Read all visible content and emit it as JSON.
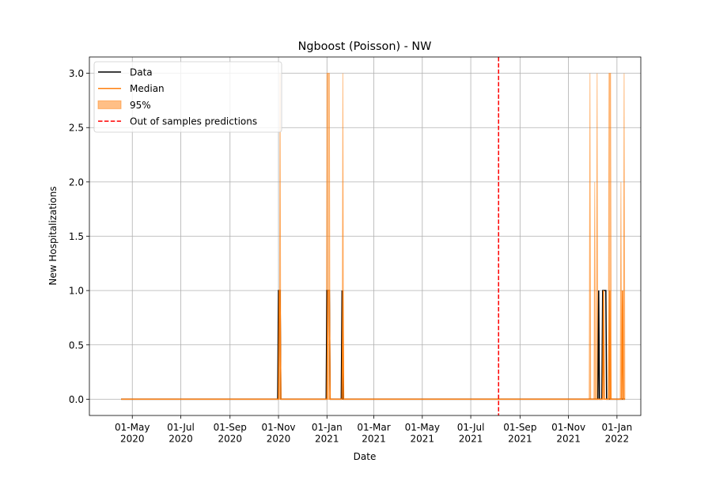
{
  "chart_data": {
    "type": "line",
    "title": "Ngboost (Poisson) - NW",
    "xlabel": "Date",
    "ylabel": "New Hospitalizations",
    "xlim": [
      "2020-03-08",
      "2022-01-31"
    ],
    "ylim": [
      -0.15,
      3.15
    ],
    "grid": true,
    "legend_position": "top-left",
    "x_ticks": [
      {
        "date": "2020-05-01",
        "label": [
          "01-May",
          "2020"
        ]
      },
      {
        "date": "2020-07-01",
        "label": [
          "01-Jul",
          "2020"
        ]
      },
      {
        "date": "2020-09-01",
        "label": [
          "01-Sep",
          "2020"
        ]
      },
      {
        "date": "2020-11-01",
        "label": [
          "01-Nov",
          "2020"
        ]
      },
      {
        "date": "2021-01-01",
        "label": [
          "01-Jan",
          "2021"
        ]
      },
      {
        "date": "2021-03-01",
        "label": [
          "01-Mar",
          "2021"
        ]
      },
      {
        "date": "2021-05-01",
        "label": [
          "01-May",
          "2021"
        ]
      },
      {
        "date": "2021-07-01",
        "label": [
          "01-Jul",
          "2021"
        ]
      },
      {
        "date": "2021-09-01",
        "label": [
          "01-Sep",
          "2021"
        ]
      },
      {
        "date": "2021-11-01",
        "label": [
          "01-Nov",
          "2021"
        ]
      },
      {
        "date": "2022-01-01",
        "label": [
          "01-Jan",
          "2022"
        ]
      }
    ],
    "y_ticks": [
      0.0,
      0.5,
      1.0,
      1.5,
      2.0,
      2.5,
      3.0
    ],
    "y_tick_labels": [
      "0.0",
      "0.5",
      "1.0",
      "1.5",
      "2.0",
      "2.5",
      "3.0"
    ],
    "legend": [
      {
        "label": "Data",
        "kind": "line",
        "color": "#000000"
      },
      {
        "label": "Median",
        "kind": "line",
        "color": "#ff7f0e"
      },
      {
        "label": "95%",
        "kind": "patch",
        "color": "#ff7f0e"
      },
      {
        "label": "Out of samples predictions",
        "kind": "dashed",
        "color": "#ff0000"
      }
    ],
    "split_date": "2021-08-05",
    "series": [
      {
        "name": "Data",
        "color": "#000000",
        "points": [
          [
            "2020-04-17",
            0
          ],
          [
            "2020-10-31",
            0
          ],
          [
            "2020-11-01",
            1
          ],
          [
            "2020-11-03",
            1
          ],
          [
            "2020-11-04",
            0
          ],
          [
            "2020-12-31",
            0
          ],
          [
            "2021-01-01",
            1
          ],
          [
            "2021-01-04",
            1
          ],
          [
            "2021-01-05",
            0
          ],
          [
            "2021-01-19",
            0
          ],
          [
            "2021-01-20",
            1
          ],
          [
            "2021-01-21",
            0
          ],
          [
            "2021-12-08",
            0
          ],
          [
            "2021-12-09",
            1
          ],
          [
            "2021-12-10",
            0
          ],
          [
            "2021-12-13",
            0
          ],
          [
            "2021-12-14",
            1
          ],
          [
            "2021-12-18",
            1
          ],
          [
            "2021-12-19",
            0
          ],
          [
            "2022-01-11",
            0
          ]
        ]
      },
      {
        "name": "Median",
        "color": "#ff7f0e",
        "points": [
          [
            "2020-04-17",
            0
          ],
          [
            "2020-11-01",
            0
          ],
          [
            "2020-11-02",
            1
          ],
          [
            "2020-11-03",
            1
          ],
          [
            "2020-11-04",
            0
          ],
          [
            "2021-01-01",
            0
          ],
          [
            "2021-01-02",
            1
          ],
          [
            "2021-01-04",
            1
          ],
          [
            "2021-01-05",
            0
          ],
          [
            "2021-01-20",
            0
          ],
          [
            "2021-01-21",
            1
          ],
          [
            "2021-01-22",
            0
          ],
          [
            "2021-12-14",
            0
          ],
          [
            "2021-12-15",
            1
          ],
          [
            "2021-12-16",
            0
          ],
          [
            "2021-12-22",
            0
          ],
          [
            "2021-12-23",
            1
          ],
          [
            "2021-12-24",
            0
          ],
          [
            "2022-01-07",
            0
          ],
          [
            "2022-01-08",
            1
          ],
          [
            "2022-01-09",
            0
          ],
          [
            "2022-01-11",
            0
          ]
        ]
      }
    ],
    "band": {
      "name": "95%",
      "color": "#ff7f0e",
      "opacity": 0.5,
      "lower": 0,
      "upper_points": [
        [
          "2020-04-17",
          0
        ],
        [
          "2020-11-02",
          0
        ],
        [
          "2020-11-03",
          3
        ],
        [
          "2020-11-04",
          0
        ],
        [
          "2020-12-31",
          0
        ],
        [
          "2021-01-01",
          3
        ],
        [
          "2021-01-03",
          3
        ],
        [
          "2021-01-04",
          3
        ],
        [
          "2021-01-05",
          0
        ],
        [
          "2021-01-20",
          0
        ],
        [
          "2021-01-21",
          3
        ],
        [
          "2021-01-22",
          0
        ],
        [
          "2021-11-27",
          0
        ],
        [
          "2021-11-28",
          3
        ],
        [
          "2021-11-29",
          0
        ],
        [
          "2021-12-03",
          0
        ],
        [
          "2021-12-04",
          2
        ],
        [
          "2021-12-05",
          0
        ],
        [
          "2021-12-06",
          0
        ],
        [
          "2021-12-07",
          3
        ],
        [
          "2021-12-08",
          0
        ],
        [
          "2021-12-21",
          0
        ],
        [
          "2021-12-22",
          3
        ],
        [
          "2021-12-23",
          3
        ],
        [
          "2021-12-24",
          3
        ],
        [
          "2021-12-25",
          0
        ],
        [
          "2022-01-05",
          0
        ],
        [
          "2022-01-06",
          2
        ],
        [
          "2022-01-07",
          0
        ],
        [
          "2022-01-09",
          0
        ],
        [
          "2022-01-10",
          3
        ],
        [
          "2022-01-11",
          0
        ]
      ]
    }
  }
}
